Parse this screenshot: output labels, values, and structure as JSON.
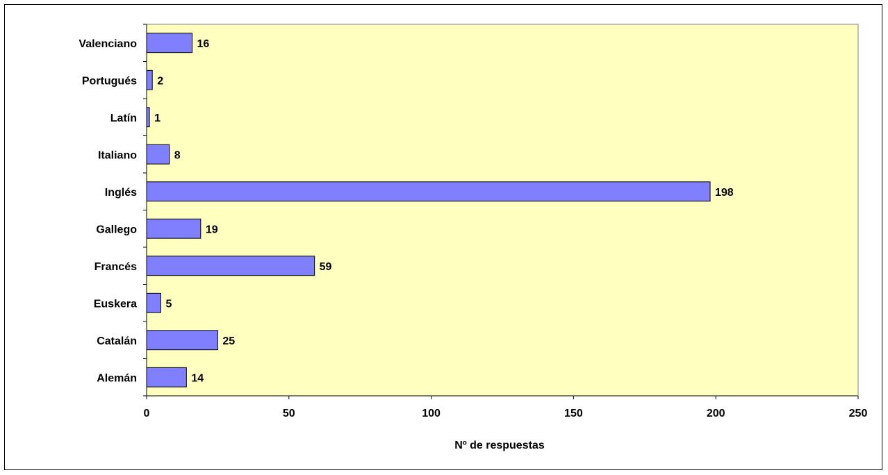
{
  "chart_data": {
    "type": "bar",
    "orientation": "horizontal",
    "categories": [
      "Alemán",
      "Catalán",
      "Euskera",
      "Francés",
      "Gallego",
      "Inglés",
      "Italiano",
      "Latín",
      "Portugués",
      "Valenciano"
    ],
    "values": [
      14,
      25,
      5,
      59,
      19,
      198,
      8,
      1,
      2,
      16
    ],
    "xlabel": "Nº de respuestas",
    "xlim": [
      0,
      250
    ],
    "xticks": [
      "0",
      "50",
      "100",
      "150",
      "200",
      "250"
    ],
    "grid": false,
    "legend": "none",
    "data_labels": true
  },
  "colors": {
    "bar_fill": "#8080ff",
    "bar_stroke": "#000000",
    "plot_background": "#ffffc0"
  }
}
